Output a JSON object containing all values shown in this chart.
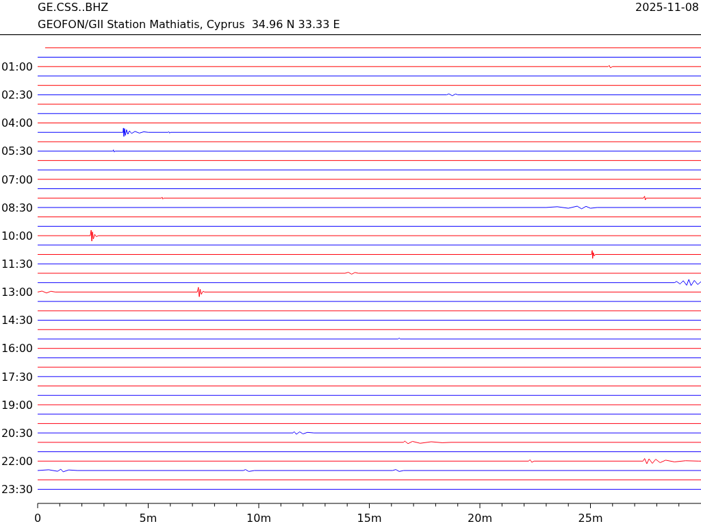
{
  "chart_data": {
    "type": "line",
    "title": "GE.CSS..BHZ",
    "subtitle": "GEOFON/GII Station Mathiatis, Cyprus  34.96 N 33.33 E",
    "annotations": [
      "2025-11-08"
    ],
    "xlim": [
      0,
      30
    ],
    "xticks": [
      0,
      {
        "value": 1,
        "label": null
      },
      {
        "value": 2,
        "label": null
      },
      {
        "value": 3,
        "label": null
      },
      {
        "value": 4,
        "label": null
      },
      {
        "value": 5,
        "label": "5m"
      },
      {
        "value": 6,
        "label": null
      },
      {
        "value": 7,
        "label": null
      },
      {
        "value": 8,
        "label": null
      },
      {
        "value": 9,
        "label": null
      },
      {
        "value": 10,
        "label": "10m"
      },
      {
        "value": 11,
        "label": null
      },
      {
        "value": 12,
        "label": null
      },
      {
        "value": 13,
        "label": null
      },
      {
        "value": 14,
        "label": null
      },
      {
        "value": 15,
        "label": "15m"
      },
      {
        "value": 16,
        "label": null
      },
      {
        "value": 17,
        "label": null
      },
      {
        "value": 18,
        "label": null
      },
      {
        "value": 19,
        "label": null
      },
      {
        "value": 20,
        "label": "20m"
      },
      {
        "value": 21,
        "label": null
      },
      {
        "value": 22,
        "label": null
      },
      {
        "value": 23,
        "label": null
      },
      {
        "value": 24,
        "label": null
      },
      {
        "value": 25,
        "label": "25m"
      },
      {
        "value": 26,
        "label": null
      },
      {
        "value": 27,
        "label": null
      },
      {
        "value": 28,
        "label": null
      },
      {
        "value": 29,
        "label": null
      }
    ],
    "ylim": [
      24.25,
      -0.7
    ],
    "yticks": [
      {
        "value": 1,
        "label": "01:00"
      },
      {
        "value": 2.5,
        "label": "02:30"
      },
      {
        "value": 4,
        "label": "04:00"
      },
      {
        "value": 5.5,
        "label": "05:30"
      },
      {
        "value": 7,
        "label": "07:00"
      },
      {
        "value": 8.5,
        "label": "08:30"
      },
      {
        "value": 10,
        "label": "10:00"
      },
      {
        "value": 11.5,
        "label": "11:30"
      },
      {
        "value": 13,
        "label": "13:00"
      },
      {
        "value": 14.5,
        "label": "14:30"
      },
      {
        "value": 16,
        "label": "16:00"
      },
      {
        "value": 17.5,
        "label": "17:30"
      },
      {
        "value": 19,
        "label": "19:00"
      },
      {
        "value": 20.5,
        "label": "20:30"
      },
      {
        "value": 22,
        "label": "22:00"
      },
      {
        "value": 23.5,
        "label": "23:30"
      }
    ],
    "series": [
      {
        "color": "#ff0000",
        "x": [
          0.35,
          30
        ],
        "values": [
          0,
          0
        ]
      },
      {
        "color": "#0000ff",
        "x": [
          0,
          30
        ],
        "values": [
          0.5,
          0.5
        ]
      },
      {
        "color": "#ff0001",
        "x": [
          0,
          25.8,
          25.85,
          25.9,
          26,
          30
        ],
        "values": [
          1,
          1,
          0.94,
          1.06,
          1,
          1
        ]
      },
      {
        "color": "#0100ff",
        "x": [
          0,
          30
        ],
        "values": [
          1.5,
          1.5
        ]
      },
      {
        "color": "#ff0002",
        "x": [
          0,
          30
        ],
        "values": [
          2,
          2
        ]
      },
      {
        "color": "#0200ff",
        "x": [
          0,
          18.5,
          18.6,
          18.75,
          18.9,
          19,
          30
        ],
        "values": [
          2.5,
          2.5,
          2.45,
          2.55,
          2.46,
          2.5,
          2.5
        ]
      },
      {
        "color": "#ff0003",
        "x": [
          0,
          30
        ],
        "values": [
          3,
          3
        ]
      },
      {
        "color": "#0300ff",
        "x": [
          0,
          30
        ],
        "values": [
          3.5,
          3.5
        ]
      },
      {
        "color": "#ff0004",
        "x": [
          0,
          30
        ],
        "values": [
          4,
          4
        ]
      },
      {
        "color": "#0400ff",
        "x": [
          0,
          3.86,
          3.88,
          3.9,
          3.93,
          3.97,
          4.02,
          4.08,
          4.15,
          4.25,
          4.4,
          4.6,
          4.8,
          5,
          5.9,
          5.93,
          5.97,
          6,
          30
        ],
        "values": [
          4.5,
          4.5,
          4.27,
          4.72,
          4.3,
          4.66,
          4.36,
          4.6,
          4.42,
          4.56,
          4.45,
          4.54,
          4.47,
          4.5,
          4.5,
          4.46,
          4.54,
          4.5,
          4.5
        ]
      },
      {
        "color": "#ff0005",
        "x": [
          0,
          30
        ],
        "values": [
          5,
          5
        ]
      },
      {
        "color": "#0500ff",
        "x": [
          0,
          3.4,
          3.43,
          3.46,
          3.5,
          30
        ],
        "values": [
          5.5,
          5.5,
          5.43,
          5.55,
          5.5,
          5.5
        ]
      },
      {
        "color": "#ff0006",
        "x": [
          0,
          30
        ],
        "values": [
          6,
          6
        ]
      },
      {
        "color": "#0600ff",
        "x": [
          0,
          30
        ],
        "values": [
          6.5,
          6.5
        ]
      },
      {
        "color": "#ff0007",
        "x": [
          0,
          30
        ],
        "values": [
          7,
          7
        ]
      },
      {
        "color": "#0700ff",
        "x": [
          0,
          30
        ],
        "values": [
          7.5,
          7.5
        ]
      },
      {
        "color": "#ff0008",
        "x": [
          0,
          5.6,
          5.63,
          5.66,
          5.7,
          27.4,
          27.45,
          27.48,
          27.52,
          30
        ],
        "values": [
          8,
          8,
          7.95,
          8.05,
          8,
          8,
          7.9,
          8.1,
          8,
          8
        ]
      },
      {
        "color": "#0800ff",
        "x": [
          0,
          23,
          23.5,
          24,
          24.4,
          24.6,
          24.8,
          25,
          25.3,
          30
        ],
        "values": [
          8.5,
          8.5,
          8.46,
          8.54,
          8.43,
          8.57,
          8.44,
          8.54,
          8.5,
          8.5
        ]
      },
      {
        "color": "#ff0009",
        "x": [
          0,
          30
        ],
        "values": [
          9,
          9
        ]
      },
      {
        "color": "#0900ff",
        "x": [
          0,
          30
        ],
        "values": [
          9.5,
          9.5
        ]
      },
      {
        "color": "#ff000a",
        "x": [
          0,
          2.38,
          2.42,
          2.45,
          2.48,
          2.52,
          2.58,
          2.65,
          2.75,
          30
        ],
        "values": [
          10,
          10,
          9.71,
          10.29,
          9.8,
          10.18,
          9.93,
          10.05,
          10,
          10
        ]
      },
      {
        "color": "#0a00ff",
        "x": [
          0,
          30
        ],
        "values": [
          10.5,
          10.5
        ]
      },
      {
        "color": "#ff000b",
        "x": [
          0,
          25.05,
          25.08,
          25.1,
          25.13,
          25.17,
          25.22,
          30
        ],
        "values": [
          11,
          11,
          10.79,
          11.21,
          10.9,
          11.08,
          11,
          11
        ]
      },
      {
        "color": "#0b00ff",
        "x": [
          0,
          30
        ],
        "values": [
          11.5,
          11.5
        ]
      },
      {
        "color": "#ff000c",
        "x": [
          0,
          13.9,
          14.05,
          14.2,
          14.35,
          14.5,
          30
        ],
        "values": [
          12,
          12,
          11.95,
          12.05,
          11.96,
          12,
          12
        ]
      },
      {
        "color": "#0c00ff",
        "x": [
          0,
          28.8,
          28.9,
          29.05,
          29.2,
          29.35,
          29.45,
          29.55,
          29.7,
          29.85,
          30
        ],
        "values": [
          12.5,
          12.5,
          12.44,
          12.57,
          12.4,
          12.64,
          12.33,
          12.66,
          12.38,
          12.6,
          12.45
        ]
      },
      {
        "color": "#ff000d",
        "x": [
          0,
          0.2,
          0.4,
          0.6,
          0.8,
          7.22,
          7.27,
          7.31,
          7.35,
          7.4,
          7.48,
          7.55,
          30
        ],
        "values": [
          13,
          12.95,
          13.05,
          12.96,
          13,
          13,
          12.75,
          13.25,
          12.85,
          13.12,
          12.96,
          13,
          13
        ]
      },
      {
        "color": "#0d00ff",
        "x": [
          0,
          30
        ],
        "values": [
          13.5,
          13.5
        ]
      },
      {
        "color": "#ff000e",
        "x": [
          0,
          30
        ],
        "values": [
          14,
          14
        ]
      },
      {
        "color": "#0e00ff",
        "x": [
          0,
          30
        ],
        "values": [
          14.5,
          14.5
        ]
      },
      {
        "color": "#ff000f",
        "x": [
          0,
          30
        ],
        "values": [
          15,
          15
        ]
      },
      {
        "color": "#0f00ff",
        "x": [
          0,
          16.3,
          16.35,
          16.4,
          30
        ],
        "values": [
          15.5,
          15.5,
          15.45,
          15.5,
          15.5
        ]
      },
      {
        "color": "#ff0010",
        "x": [
          0,
          30
        ],
        "values": [
          16,
          16
        ]
      },
      {
        "color": "#1000ff",
        "x": [
          0,
          30
        ],
        "values": [
          16.5,
          16.5
        ]
      },
      {
        "color": "#ff0011",
        "x": [
          0,
          30
        ],
        "values": [
          17,
          17
        ]
      },
      {
        "color": "#1100ff",
        "x": [
          0,
          30
        ],
        "values": [
          17.5,
          17.5
        ]
      },
      {
        "color": "#ff0012",
        "x": [
          0,
          30
        ],
        "values": [
          18,
          18
        ]
      },
      {
        "color": "#1200ff",
        "x": [
          0,
          30
        ],
        "values": [
          18.5,
          18.5
        ]
      },
      {
        "color": "#ff0013",
        "x": [
          0,
          30
        ],
        "values": [
          19,
          19
        ]
      },
      {
        "color": "#1300ff",
        "x": [
          0,
          30
        ],
        "values": [
          19.5,
          19.5
        ]
      },
      {
        "color": "#ff0014",
        "x": [
          0,
          30
        ],
        "values": [
          20,
          20
        ]
      },
      {
        "color": "#1400ff",
        "x": [
          0,
          11.55,
          11.6,
          11.7,
          11.85,
          12,
          12.2,
          12.5,
          30
        ],
        "values": [
          20.5,
          20.5,
          20.43,
          20.57,
          20.44,
          20.55,
          20.47,
          20.5,
          20.5
        ]
      },
      {
        "color": "#ff0015",
        "x": [
          0,
          16.55,
          16.6,
          16.75,
          16.95,
          17.3,
          17.8,
          18.3,
          18.7,
          30
        ],
        "values": [
          21,
          21,
          20.93,
          21.07,
          20.95,
          21.05,
          20.97,
          21.02,
          21,
          21
        ]
      },
      {
        "color": "#1500ff",
        "x": [
          0,
          30
        ],
        "values": [
          21.5,
          21.5
        ]
      },
      {
        "color": "#ff0016",
        "x": [
          0,
          22.2,
          22.27,
          22.35,
          22.45,
          27.38,
          27.45,
          27.55,
          27.65,
          27.8,
          27.95,
          28.15,
          28.4,
          28.8,
          29.3,
          29.9,
          30
        ],
        "values": [
          22,
          22,
          21.93,
          22.06,
          22,
          22,
          21.86,
          22.14,
          21.88,
          22.12,
          21.9,
          22.08,
          21.95,
          22.04,
          21.98,
          22,
          22
        ]
      },
      {
        "color": "#1600ff",
        "x": [
          0,
          0.5,
          0.9,
          1.05,
          1.15,
          1.4,
          1.8,
          9.3,
          9.4,
          9.55,
          9.8,
          16.05,
          16.2,
          16.35,
          16.55,
          30
        ],
        "values": [
          22.5,
          22.46,
          22.54,
          22.43,
          22.57,
          22.47,
          22.5,
          22.5,
          22.45,
          22.55,
          22.5,
          22.5,
          22.45,
          22.55,
          22.5,
          22.5
        ]
      },
      {
        "color": "#ff0017",
        "x": [
          0,
          30
        ],
        "values": [
          23,
          23
        ]
      },
      {
        "color": "#1700ff",
        "x": [
          0,
          30
        ],
        "values": [
          23.5,
          23.5
        ]
      }
    ]
  }
}
